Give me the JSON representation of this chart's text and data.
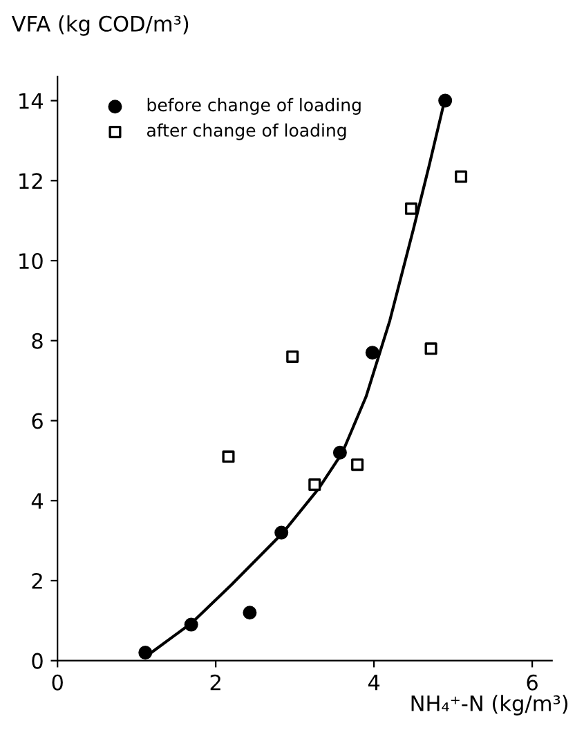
{
  "chart_data": {
    "type": "scatter",
    "xlabel": "NH₄⁺-N (kg/m³)",
    "ylabel": "VFA (kg COD/m³)",
    "xlim": [
      0,
      6.25
    ],
    "ylim": [
      0,
      14.6
    ],
    "xticks": [
      0,
      2,
      4,
      6
    ],
    "yticks": [
      0,
      2,
      4,
      6,
      8,
      10,
      12,
      14
    ],
    "grid": false,
    "legend": "top left",
    "series": [
      {
        "name": "before change of loading",
        "marker": "circle",
        "color": "#000000",
        "x": [
          1.11,
          1.69,
          2.43,
          2.83,
          3.57,
          3.98,
          4.9
        ],
        "values": [
          0.2,
          0.9,
          1.2,
          3.2,
          5.2,
          7.7,
          14.0
        ]
      },
      {
        "name": "after change of loading",
        "marker": "square",
        "color": "#000000",
        "x": [
          2.16,
          2.97,
          3.25,
          3.79,
          4.47,
          4.72,
          5.1
        ],
        "values": [
          5.1,
          7.6,
          4.4,
          4.9,
          11.3,
          7.8,
          12.1
        ]
      },
      {
        "type": "line",
        "marker": "none",
        "line_style": "solid",
        "color": "#000000",
        "x": [
          1.15,
          1.7,
          2.2,
          2.85,
          3.3,
          3.6,
          3.9,
          4.2,
          4.5,
          4.7,
          4.88
        ],
        "values": [
          0.15,
          0.95,
          1.9,
          3.2,
          4.3,
          5.2,
          6.6,
          8.5,
          10.8,
          12.4,
          13.9
        ]
      }
    ]
  }
}
